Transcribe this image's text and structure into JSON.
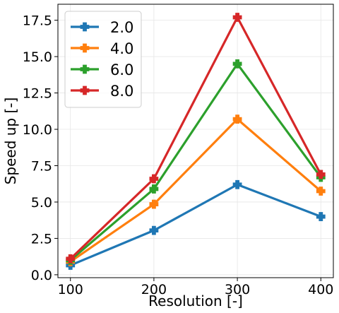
{
  "chart_data": {
    "type": "line",
    "title": "",
    "xlabel": "Resolution [-]",
    "ylabel": "Speed up [-]",
    "x": [
      100,
      200,
      300,
      400
    ],
    "xticks": [
      "100",
      "200",
      "300",
      "400"
    ],
    "yticks": [
      "0.0",
      "2.5",
      "5.0",
      "7.5",
      "10.0",
      "12.5",
      "15.0",
      "17.5"
    ],
    "xlim": [
      85,
      415
    ],
    "ylim": [
      -0.2,
      18.6
    ],
    "grid": true,
    "legend_position": "upper-left",
    "series": [
      {
        "name": "2.0",
        "color": "#1f77b4",
        "values": [
          0.65,
          3.05,
          6.2,
          4.0
        ]
      },
      {
        "name": "4.0",
        "color": "#ff7f0e",
        "values": [
          0.9,
          4.85,
          10.7,
          5.75
        ]
      },
      {
        "name": "6.0",
        "color": "#2ca02c",
        "values": [
          1.0,
          5.9,
          14.5,
          6.7
        ]
      },
      {
        "name": "8.0",
        "color": "#d62728",
        "values": [
          1.1,
          6.6,
          17.7,
          6.9
        ]
      }
    ]
  }
}
